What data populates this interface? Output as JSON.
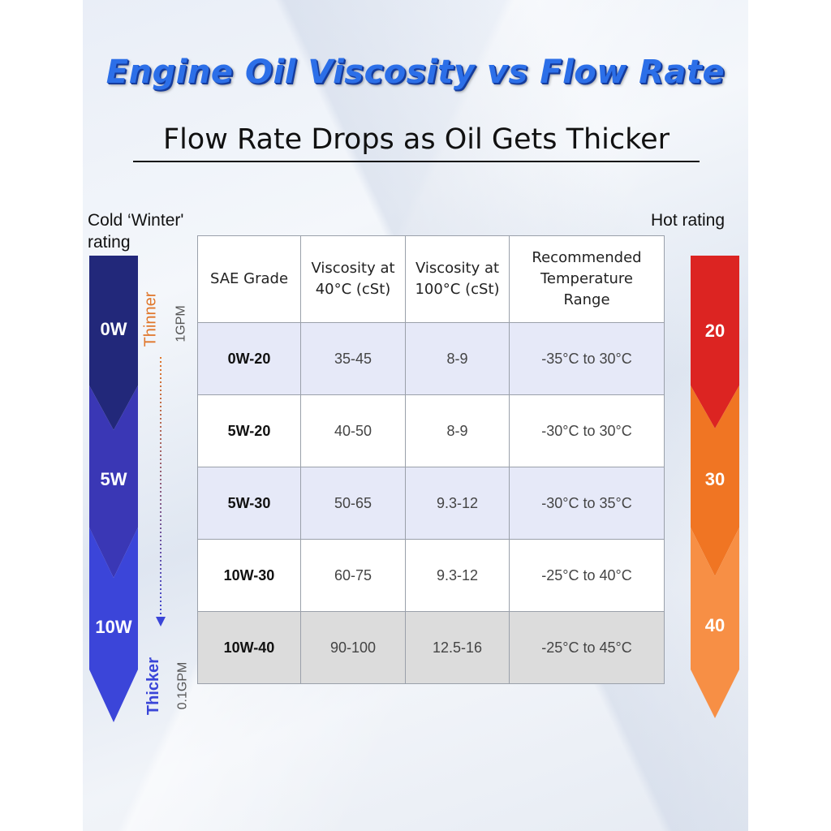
{
  "title": "Engine Oil Viscosity vs Flow Rate",
  "subtitle": "Flow Rate Drops as Oil Gets Thicker",
  "left_label": [
    "Cold ‘Winter'",
    "rating"
  ],
  "right_label": "Hot rating",
  "winter_arrow": {
    "segments": [
      {
        "label": "0W",
        "color": "#22287a"
      },
      {
        "label": "5W",
        "color": "#3a37b5"
      },
      {
        "label": "10W",
        "color": "#3b45d9"
      }
    ]
  },
  "hot_arrow": {
    "segments": [
      {
        "label": "20",
        "color": "#dc2422"
      },
      {
        "label": "30",
        "color": "#f07523"
      },
      {
        "label": "40",
        "color": "#f78f45"
      }
    ]
  },
  "flow_indicator": {
    "top_label": "Thinner",
    "top_rate": "1GPM",
    "bottom_label": "Thicker",
    "bottom_rate": "0.1GPM",
    "top_color": "#e0762a",
    "bottom_color": "#3a45d8"
  },
  "chart_data": {
    "type": "table",
    "columns": [
      [
        "SAE Grade"
      ],
      [
        "Viscosity at",
        "40°C (cSt)"
      ],
      [
        "Viscosity at",
        "100°C (cSt)"
      ],
      [
        "Recommended",
        "Temperature",
        "Range"
      ]
    ],
    "rows": [
      {
        "grade": "0W-20",
        "visc40": "35-45",
        "visc100": "8-9",
        "range": "-35°C to 30°C"
      },
      {
        "grade": "5W-20",
        "visc40": "40-50",
        "visc100": "8-9",
        "range": "-30°C to 30°C"
      },
      {
        "grade": "5W-30",
        "visc40": "50-65",
        "visc100": "9.3-12",
        "range": "-30°C to 35°C"
      },
      {
        "grade": "10W-30",
        "visc40": "60-75",
        "visc100": "9.3-12",
        "range": "-25°C to 40°C"
      },
      {
        "grade": "10W-40",
        "visc40": "90-100",
        "visc100": "12.5-16",
        "range": "-25°C to 45°C"
      }
    ]
  }
}
